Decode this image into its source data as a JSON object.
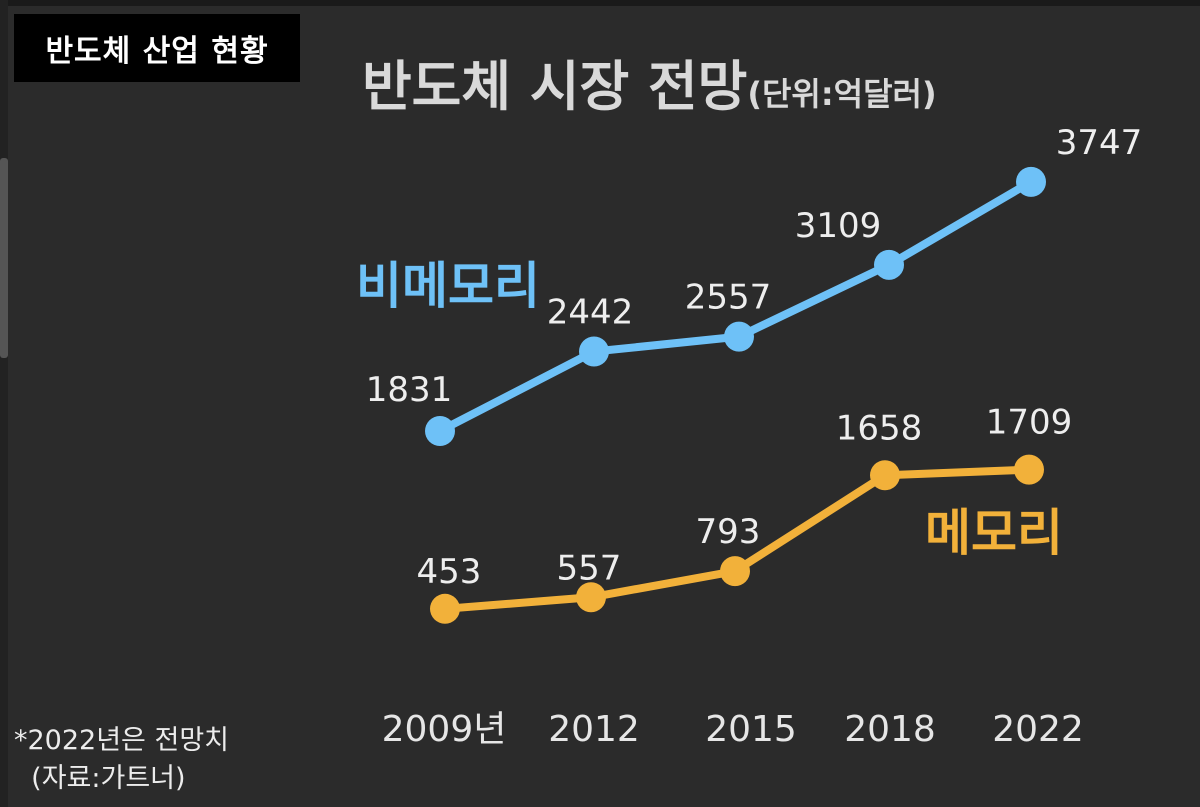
{
  "header": {
    "tag": "반도체 산업 현황",
    "title": "반도체 시장 전망",
    "unit": "(단위:억달러)"
  },
  "footnote": "*2022년은 전망치\n  (자료:가트너)",
  "colors": {
    "background": "#2b2b2b",
    "non_memory": "#6ec1f7",
    "memory": "#f2b13a"
  },
  "chart_data": {
    "type": "line",
    "categories": [
      "2009년",
      "2012",
      "2015",
      "2018",
      "2022"
    ],
    "series": [
      {
        "name": "비메모리",
        "values": [
          1831,
          2442,
          2557,
          3109,
          3747
        ],
        "color": "#6ec1f7"
      },
      {
        "name": "메모리",
        "values": [
          453,
          557,
          793,
          1658,
          1709
        ],
        "color": "#f2b13a"
      }
    ],
    "title": "반도체 시장 전망",
    "ylim": [
      0,
      4000
    ],
    "grid": false,
    "legend": "inline labels"
  }
}
